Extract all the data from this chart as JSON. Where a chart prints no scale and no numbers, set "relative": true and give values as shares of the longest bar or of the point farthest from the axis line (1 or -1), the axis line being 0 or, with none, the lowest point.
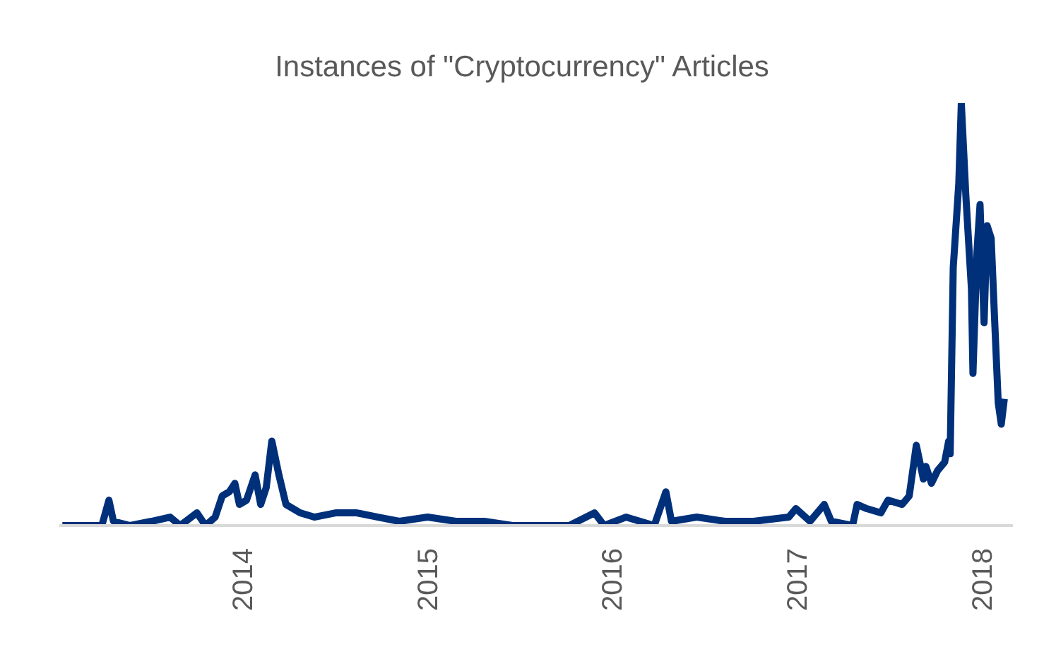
{
  "chart_data": {
    "type": "line",
    "title": "Instances of \"Cryptocurrency\" Articles",
    "relative": true,
    "marker": "none",
    "line_style": "solid",
    "xlim": [
      "2013-01-01",
      "2018-03-01"
    ],
    "xticks": [
      "2014",
      "2015",
      "2016",
      "2017",
      "2018"
    ],
    "x": [
      "2013-01-07",
      "2013-02-13",
      "2013-03-26",
      "2013-04-09",
      "2013-04-18",
      "2013-05-21",
      "2013-07-02",
      "2013-08-08",
      "2013-08-28",
      "2013-09-30",
      "2013-10-17",
      "2013-11-05",
      "2013-11-19",
      "2013-12-03",
      "2013-12-14",
      "2013-12-23",
      "2014-01-06",
      "2014-01-23",
      "2014-02-03",
      "2014-02-14",
      "2014-02-25",
      "2014-03-11",
      "2014-03-25",
      "2014-04-22",
      "2014-05-20",
      "2014-07-01",
      "2014-08-12",
      "2014-09-23",
      "2014-11-04",
      "2014-12-30",
      "2015-02-24",
      "2015-04-21",
      "2015-06-16",
      "2015-08-11",
      "2015-10-06",
      "2015-11-25",
      "2015-12-14",
      "2016-01-26",
      "2016-03-22",
      "2016-04-14",
      "2016-04-25",
      "2016-06-14",
      "2016-08-09",
      "2016-10-04",
      "2016-12-13",
      "2016-12-27",
      "2017-01-24",
      "2017-02-21",
      "2017-03-07",
      "2017-04-18",
      "2017-04-27",
      "2017-05-16",
      "2017-06-13",
      "2017-06-27",
      "2017-07-25",
      "2017-08-08",
      "2017-08-22",
      "2017-09-05",
      "2017-09-10",
      "2017-09-21",
      "2017-10-03",
      "2017-10-17",
      "2017-10-25",
      "2017-10-28",
      "2017-11-03",
      "2017-11-14",
      "2017-11-19",
      "2017-11-28",
      "2017-12-09",
      "2017-12-12",
      "2017-12-20",
      "2017-12-26",
      "2018-01-03",
      "2018-01-09",
      "2018-01-17",
      "2018-01-23",
      "2018-01-31",
      "2018-02-06",
      "2018-02-12"
    ],
    "series": [
      {
        "color": "#00307a",
        "values": [
          0,
          0,
          0,
          0.06,
          0.01,
          0,
          0.01,
          0.02,
          0,
          0.03,
          0,
          0.02,
          0.07,
          0.08,
          0.1,
          0.05,
          0.06,
          0.12,
          0.05,
          0.09,
          0.2,
          0.12,
          0.05,
          0.03,
          0.02,
          0.03,
          0.03,
          0.02,
          0.01,
          0.02,
          0.01,
          0.01,
          0,
          0,
          0,
          0.03,
          0,
          0.02,
          0,
          0.08,
          0.01,
          0.02,
          0.01,
          0.01,
          0.02,
          0.04,
          0.01,
          0.05,
          0.01,
          0,
          0.05,
          0.04,
          0.03,
          0.06,
          0.05,
          0.07,
          0.19,
          0.11,
          0.14,
          0.1,
          0.13,
          0.15,
          0.2,
          0.17,
          0.61,
          0.81,
          1,
          0.78,
          0.56,
          0.36,
          0.65,
          0.76,
          0.48,
          0.71,
          0.68,
          0.51,
          0.29,
          0.24,
          0.3
        ]
      }
    ]
  }
}
